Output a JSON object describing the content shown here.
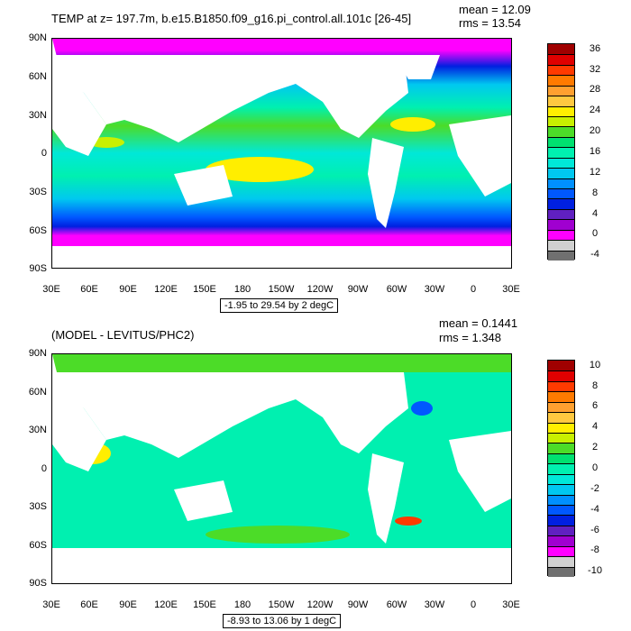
{
  "panel1": {
    "title": "TEMP at z= 197.7m, b.e15.B1850.f09_g16.pi_control.all.101c [26-45]",
    "mean": "mean = 12.09",
    "rms": "rms = 13.54",
    "range": "-1.95 to 29.54 by 2 degC",
    "colorbar": {
      "labels": [
        "36",
        "32",
        "28",
        "24",
        "20",
        "16",
        "12",
        "8",
        "4",
        "0",
        "-4"
      ],
      "colors": [
        "#a00000",
        "#e00000",
        "#ff3a00",
        "#ff7a00",
        "#ffa030",
        "#ffc840",
        "#ffee00",
        "#c8f000",
        "#4cdc28",
        "#00e070",
        "#00f0b0",
        "#00e8d8",
        "#00c8f0",
        "#0090ff",
        "#0058ff",
        "#0020e0",
        "#6020c0",
        "#a000d0",
        "#ff00ff",
        "#d0d0d0",
        "#707070"
      ]
    }
  },
  "panel2": {
    "title": "(MODEL - LEVITUS/PHC2)",
    "mean": "mean = 0.1441",
    "rms": "rms = 1.348",
    "range": "-8.93 to 13.06 by 1 degC",
    "colorbar": {
      "labels": [
        "10",
        "8",
        "6",
        "4",
        "2",
        "0",
        "-2",
        "-4",
        "-6",
        "-8",
        "-10"
      ],
      "colors": [
        "#a00000",
        "#e00000",
        "#ff3a00",
        "#ff7a00",
        "#ffa030",
        "#ffc840",
        "#ffee00",
        "#c8f000",
        "#4cdc28",
        "#00e070",
        "#00f0b0",
        "#00e8d8",
        "#00c8f0",
        "#0090ff",
        "#0058ff",
        "#0020e0",
        "#6020c0",
        "#a000d0",
        "#ff00ff",
        "#d0d0d0",
        "#707070"
      ]
    }
  },
  "axes": {
    "lat_labels": [
      "90N",
      "60N",
      "30N",
      "0",
      "30S",
      "60S",
      "90S"
    ],
    "lon_labels": [
      "30E",
      "60E",
      "90E",
      "120E",
      "150E",
      "180",
      "150W",
      "120W",
      "90W",
      "60W",
      "30W",
      "0",
      "30E"
    ]
  }
}
